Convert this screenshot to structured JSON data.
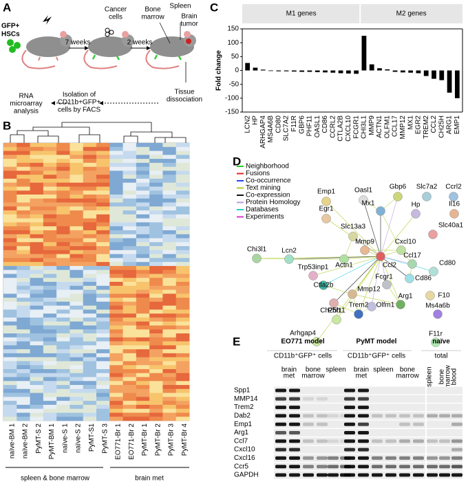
{
  "panel_a": {
    "letter": "A",
    "gfp": "GFP+",
    "hscs": "HSCs",
    "weeks_7": "7 weeks",
    "cancer_cells": [
      "Cancer",
      "cells"
    ],
    "weeks_2": "2 weeks",
    "bone_marrow": [
      "Bone",
      "marrow"
    ],
    "spleen": "Spleen",
    "brain_tumor": [
      "Brain",
      "tumor"
    ],
    "tissue": [
      "Tissue",
      "dissociation"
    ],
    "isolation": [
      "Isolation of",
      "CD11b+GFP+",
      "cells by FACS"
    ],
    "rna": [
      "RNA",
      "microarray",
      "analysis"
    ]
  },
  "panel_b": {
    "letter": "B",
    "samples": [
      "naïve-BM 1",
      "naïve-BM 2",
      "PyMT-S 2",
      "PyMT-BM 1",
      "naïve-S 1",
      "naïve-S 2",
      "PyMT-S1",
      "PyMT-S 3",
      "EO771-Br 1",
      "EO771-Br 2",
      "PyMT-Br 1",
      "PyMT-Br 2",
      "PyMT-Br 3",
      "PyMT-Br 4"
    ],
    "groups": [
      "spleen & bone marrow",
      "brain met"
    ]
  },
  "panel_c": {
    "letter": "C"
  },
  "chart_data": {
    "type": "bar",
    "group_labels": [
      "M1 genes",
      "M2 genes"
    ],
    "y_label": "Fold change",
    "categories": [
      "LCN2",
      "HP",
      "ARHGAP4",
      "MS4A6B",
      "CD80",
      "SLC7A2",
      "F11R",
      "GBP6",
      "PHF11",
      "OASL1",
      "CD86",
      "CCRL2",
      "CTLA2B",
      "CXCL10",
      "FCGR1",
      "CHI3L1",
      "MMP9",
      "ACTN1",
      "OLFM1",
      "CCL17",
      "MMP12",
      "MX1",
      "EGR2",
      "TREM2",
      "CCL2",
      "CH25H",
      "ARG1",
      "EMP1"
    ],
    "values": [
      27,
      10,
      3,
      -2,
      -3,
      -3,
      -4,
      -5,
      -5,
      -6,
      -7,
      -8,
      -10,
      -11,
      -12,
      125,
      22,
      8,
      4,
      -5,
      -7,
      -8,
      -10,
      -20,
      -30,
      -35,
      -80,
      -100
    ],
    "color": "#000000",
    "ylim": [
      -150,
      150
    ],
    "yticks": [
      -150,
      -100,
      -50,
      0,
      50,
      100,
      150
    ]
  },
  "panel_d": {
    "letter": "D",
    "legend": [
      {
        "name": "Neighborhood",
        "color": "#22cc22"
      },
      {
        "name": "Fusions",
        "color": "#ee2222"
      },
      {
        "name": "Co-occurrence",
        "color": "#2244ee"
      },
      {
        "name": "Text mining",
        "color": "#aacc22"
      },
      {
        "name": "Co-expression",
        "color": "#111111"
      },
      {
        "name": "Protein Homology",
        "color": "#bb99dd"
      },
      {
        "name": "Databases",
        "color": "#22ccdd"
      },
      {
        "name": "Experiments",
        "color": "#dd33cc"
      }
    ],
    "nodes": [
      "Emp1",
      "Egr1",
      "Oasl1",
      "Gbp6",
      "Slc7a2",
      "Ccrl2",
      "Hp",
      "Il16",
      "Mx1",
      "Slc13a3",
      "Slc40a1",
      "Mmp9",
      "Cxcl10",
      "Chi3l1",
      "Lcn2",
      "Ccl17",
      "Cd80",
      "Actn1",
      "Ccl2",
      "Trp53inp1",
      "Cd86",
      "Fcgr1",
      "Ctla2b",
      "Mmp12",
      "F10",
      "Arg1",
      "Ch25h",
      "Olfm1",
      "Ms4a6b",
      "Trem2",
      "Phf11",
      "Arhgap4",
      "F11r"
    ]
  },
  "panel_e": {
    "letter": "E",
    "models": [
      "EO771 model",
      "PyMT model",
      "naïve"
    ],
    "subheads": [
      "CD11b⁺GFP⁺ cells",
      "CD11b⁺GFP⁺ cells",
      "total"
    ],
    "lanes": [
      [
        [
          "brain",
          "met"
        ],
        [
          "bone",
          "marrow"
        ],
        [
          "spleen"
        ]
      ],
      [
        [
          "brain",
          "met"
        ],
        [
          "spleen"
        ],
        [
          "bone",
          "marrow"
        ]
      ],
      [
        [
          "spleen"
        ],
        [
          "bone",
          "marrow"
        ],
        [
          "blood"
        ]
      ]
    ],
    "genes": [
      "Spp1",
      "MMP14",
      "Trem2",
      "Dab2",
      "Emp1",
      "Arg1",
      "Ccl7",
      "Cxcl10",
      "Cxcl16",
      "Ccr5",
      "GAPDH"
    ]
  }
}
